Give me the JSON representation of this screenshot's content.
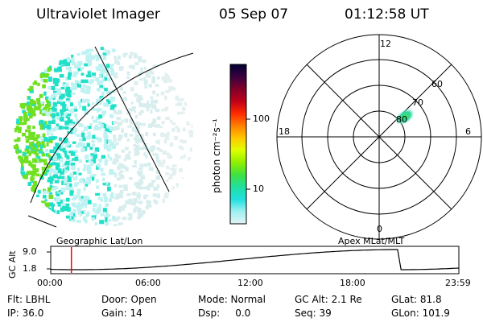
{
  "header": {
    "instrument": "Ultraviolet Imager",
    "date": "05 Sep 07",
    "time": "01:12:58 UT"
  },
  "labels": {
    "geo": "Geographic Lat/Lon",
    "apex": "Apex MLat/MLT",
    "colorbar_unit": "photon cm⁻²s⁻¹",
    "alt_axis": "GC Alt"
  },
  "colorbar": {
    "ticks": [
      "100",
      "10"
    ],
    "stops": [
      "#000033",
      "#3a0040",
      "#80002a",
      "#c00018",
      "#ff2a00",
      "#ff8000",
      "#ffc800",
      "#e0ff00",
      "#90f000",
      "#40e040",
      "#20e0a0",
      "#20e0e0",
      "#a0f0f0",
      "#e0f4f4"
    ]
  },
  "polar": {
    "mlt_labels": [
      "12",
      "18",
      "6",
      "0"
    ],
    "lat_labels": [
      "60",
      "70",
      "80"
    ]
  },
  "altitude_plot": {
    "y_ticks": [
      "9.0",
      "1.8"
    ],
    "x_ticks": [
      "00:00",
      "06:00",
      "12:00",
      "18:00",
      "23:59"
    ],
    "marker_time": "01:12:58"
  },
  "status": {
    "flt": "Flt: LBHL",
    "door": "Door: Open",
    "mode": "Mode: Normal",
    "gcalt": "GC Alt: 2.1 Re",
    "glat": "GLat:  81.8",
    "ip": "IP: 36.0",
    "gain": "Gain: 14",
    "dsp": "Dsp:     0.0",
    "seq": "Seq: 39",
    "glon": "GLon: 101.9"
  },
  "colors": {
    "aurora_green": "#70e020",
    "aurora_cyan": "#20e0c8",
    "aurora_light": "#bff2f2",
    "marker_red": "#ff0000"
  }
}
